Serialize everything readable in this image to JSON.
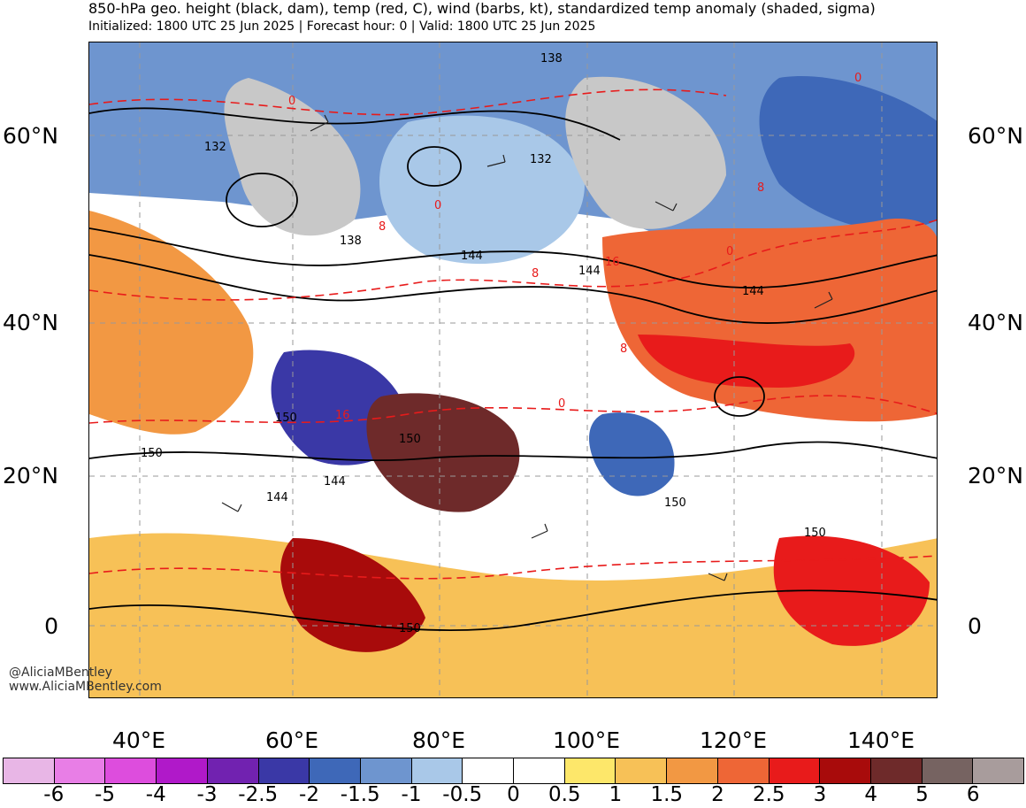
{
  "header": {
    "title": "850-hPa geo. height (black, dam), temp (red, C), wind (barbs, kt), standardized temp anomaly (shaded, sigma)",
    "subtitle": "Initialized: 1800 UTC 25 Jun 2025 | Forecast hour: 0 | Valid: 1800 UTC 25 Jun 2025"
  },
  "axes": {
    "lat_labels": [
      "60°N",
      "40°N",
      "20°N",
      "0"
    ],
    "lon_labels": [
      "40°E",
      "60°E",
      "80°E",
      "100°E",
      "120°E",
      "140°E"
    ]
  },
  "contour_labels": {
    "height": [
      "138",
      "132",
      "132",
      "138",
      "144",
      "144",
      "144",
      "150",
      "150",
      "144",
      "144",
      "150",
      "150",
      "150",
      "150"
    ],
    "temp": [
      "0",
      "0",
      "8",
      "0",
      "8",
      "16",
      "16",
      "0",
      "8",
      "0",
      "8"
    ]
  },
  "watermark": {
    "handle": "@AliciaMBentley",
    "site": "www.AliciaMBentley.com"
  },
  "colorbar": {
    "colors": [
      "#e8b6e6",
      "#e87ee6",
      "#dd4ddd",
      "#b019c9",
      "#7122b0",
      "#3a38a6",
      "#3e68b8",
      "#6e95cf",
      "#a9c8e8",
      "#ffffff",
      "#ffffff",
      "#fde76a",
      "#f7c157",
      "#f29843",
      "#ee6636",
      "#e81b1b",
      "#a80b0b",
      "#6e2a2a",
      "#766361",
      "#a89c9c"
    ],
    "labels": [
      "-6",
      "-5",
      "-4",
      "-3",
      "-2.5",
      "-2",
      "-1.5",
      "-1",
      "-0.5",
      "0",
      "0.5",
      "1",
      "1.5",
      "2",
      "2.5",
      "3",
      "4",
      "5",
      "6"
    ]
  }
}
